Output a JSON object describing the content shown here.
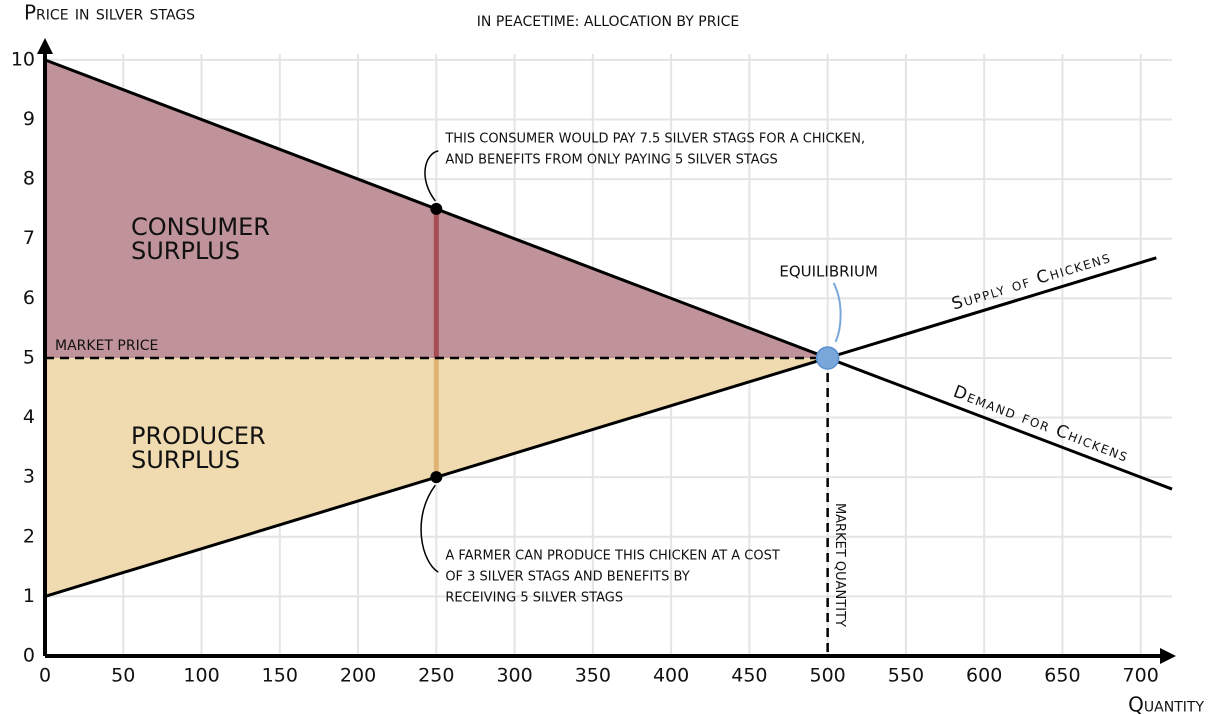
{
  "chart_data": {
    "type": "line",
    "title": "IN PEACETIME: ALLOCATION BY PRICE",
    "x_label": "Quantity",
    "y_label": "Price in silver stags",
    "xlim": [
      0,
      720
    ],
    "ylim": [
      0,
      10.3
    ],
    "xticks": [
      0,
      50,
      100,
      150,
      200,
      250,
      300,
      350,
      400,
      450,
      500,
      550,
      600,
      650,
      700
    ],
    "yticks": [
      0,
      1,
      2,
      3,
      4,
      5,
      6,
      7,
      8,
      9,
      10
    ],
    "grid": true,
    "series": [
      {
        "name": "Demand for Chickens",
        "color": "#000000",
        "x": [
          0,
          500,
          720
        ],
        "values": [
          10,
          5,
          2.8
        ]
      },
      {
        "name": "Supply of Chickens",
        "color": "#000000",
        "x": [
          0,
          500,
          710
        ],
        "values": [
          1,
          5,
          6.68
        ]
      }
    ],
    "areas": [
      {
        "label_lines": [
          "CONSUMER",
          "SURPLUS"
        ],
        "color": "#c0929a",
        "label_color": "#9e2a2b",
        "x": [
          0,
          500,
          0
        ],
        "values": [
          10,
          5,
          5
        ]
      },
      {
        "label_lines": [
          "PRODUCER",
          "SURPLUS"
        ],
        "color": "#f0dbb0",
        "label_color": "#d4a55a",
        "x": [
          0,
          500,
          0
        ],
        "values": [
          5,
          5,
          1
        ]
      }
    ],
    "market_price": {
      "label": "MARKET PRICE",
      "value": 5
    },
    "market_quantity": {
      "label": "MARKET QUANTITY",
      "value": 500
    },
    "equilibrium": {
      "label": "EQUILIBRIUM",
      "x": 500,
      "value": 5,
      "color": "#7aa7d9"
    },
    "annotations": [
      {
        "x": 250,
        "value": 7.5,
        "bar_color": "#a84d55",
        "lines": [
          "THIS CONSUMER WOULD PAY 7.5 SILVER STAGS FOR A CHICKEN,",
          "AND BENEFITS FROM ONLY PAYING 5 SILVER STAGS"
        ]
      },
      {
        "x": 250,
        "value": 3,
        "bar_color": "#e0b274",
        "lines": [
          "A FARMER CAN PRODUCE THIS CHICKEN AT A COST",
          "OF 3 SILVER STAGS AND BENEFITS BY",
          "RECEIVING 5 SILVER STAGS"
        ]
      }
    ]
  }
}
